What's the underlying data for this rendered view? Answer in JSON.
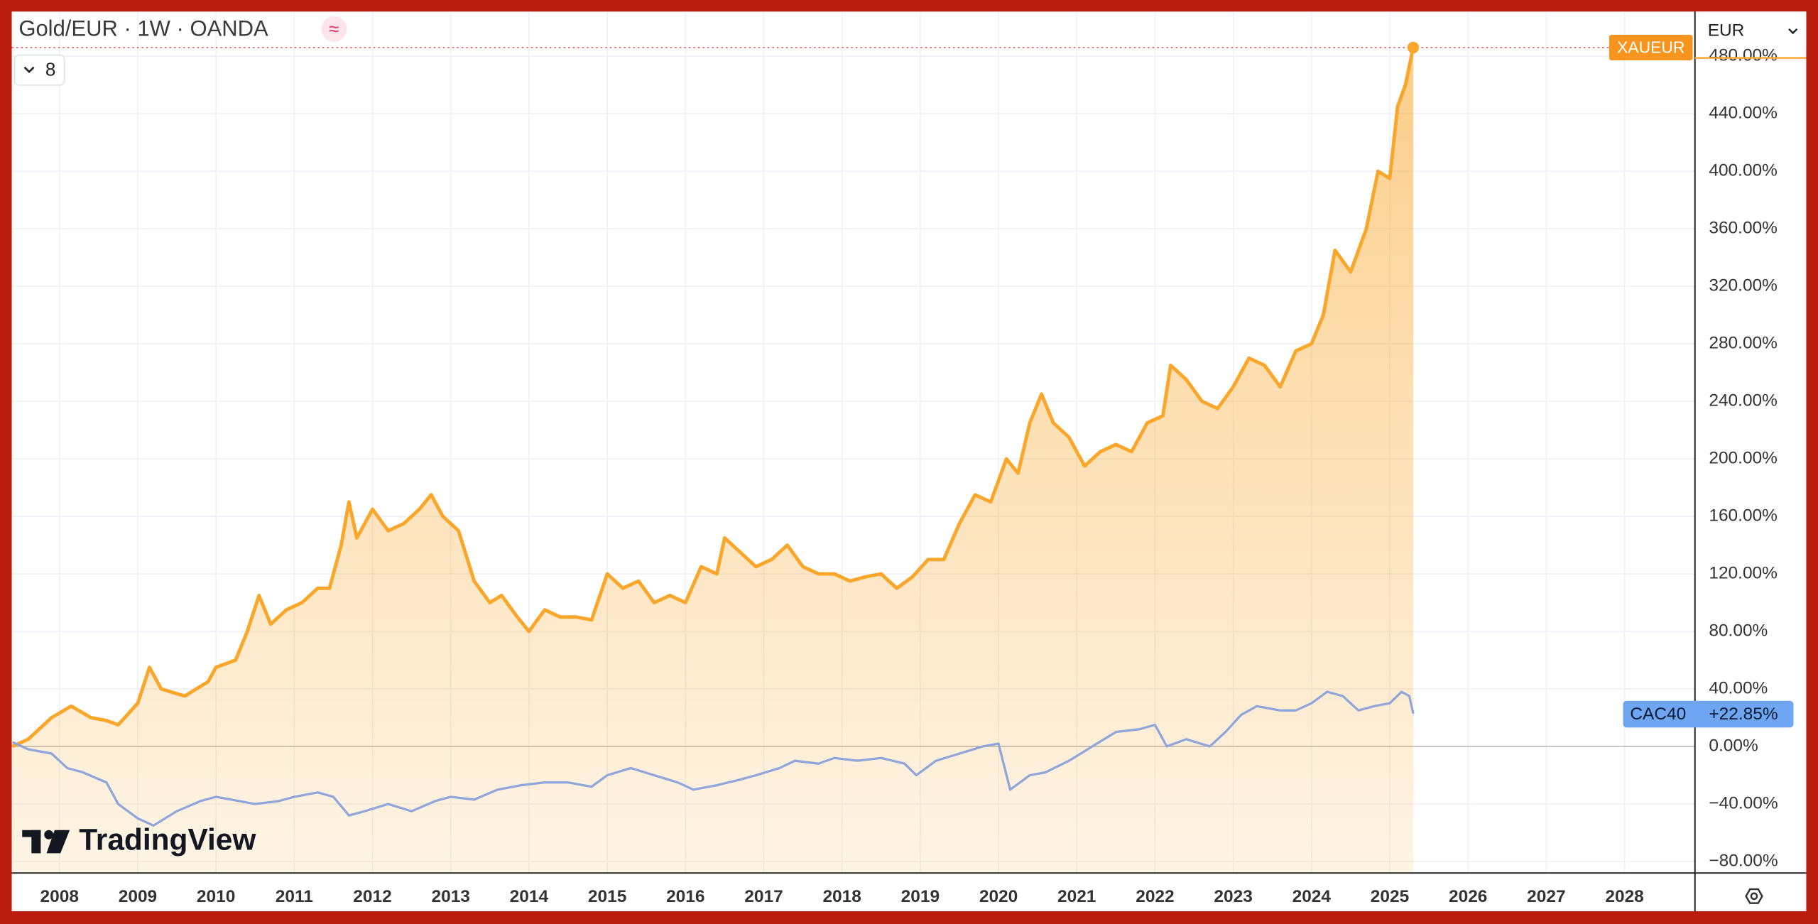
{
  "chart_data": {
    "type": "area-compare",
    "title": "Gold/EUR · 1W · OANDA",
    "indicator_count": "8",
    "currency": "EUR",
    "branding": "TradingView",
    "xlim": [
      2007.39,
      2028.9
    ],
    "xticks": [
      2008,
      2009,
      2010,
      2011,
      2012,
      2013,
      2014,
      2015,
      2016,
      2017,
      2018,
      2019,
      2020,
      2021,
      2022,
      2023,
      2024,
      2025,
      2026,
      2027,
      2028
    ],
    "ylim": [
      -88,
      511
    ],
    "yticks": [
      {
        "value": -80,
        "label": "−80.00%"
      },
      {
        "value": -40,
        "label": "−40.00%"
      },
      {
        "value": 0,
        "label": "0.00%"
      },
      {
        "value": 40,
        "label": "40.00%"
      },
      {
        "value": 80,
        "label": "80.00%"
      },
      {
        "value": 120,
        "label": "120.00%"
      },
      {
        "value": 160,
        "label": "160.00%"
      },
      {
        "value": 200,
        "label": "200.00%"
      },
      {
        "value": 240,
        "label": "240.00%"
      },
      {
        "value": 280,
        "label": "280.00%"
      },
      {
        "value": 320,
        "label": "320.00%"
      },
      {
        "value": 360,
        "label": "360.00%"
      },
      {
        "value": 400,
        "label": "400.00%"
      },
      {
        "value": 440,
        "label": "440.00%"
      },
      {
        "value": 480,
        "label": "480.00%"
      }
    ],
    "grid": true,
    "series": [
      {
        "name": "XAUEUR",
        "color": "#f9a62b",
        "fill": true,
        "x": [
          2007.4,
          2007.6,
          2007.9,
          2008.15,
          2008.4,
          2008.6,
          2008.75,
          2009.0,
          2009.15,
          2009.3,
          2009.6,
          2009.9,
          2010.0,
          2010.25,
          2010.4,
          2010.55,
          2010.7,
          2010.9,
          2011.1,
          2011.3,
          2011.45,
          2011.6,
          2011.7,
          2011.8,
          2012.0,
          2012.2,
          2012.4,
          2012.6,
          2012.75,
          2012.9,
          2013.1,
          2013.3,
          2013.5,
          2013.65,
          2013.85,
          2014.0,
          2014.2,
          2014.4,
          2014.6,
          2014.8,
          2015.0,
          2015.2,
          2015.4,
          2015.6,
          2015.8,
          2016.0,
          2016.2,
          2016.4,
          2016.5,
          2016.7,
          2016.9,
          2017.1,
          2017.3,
          2017.5,
          2017.7,
          2017.9,
          2018.1,
          2018.3,
          2018.5,
          2018.7,
          2018.9,
          2019.1,
          2019.3,
          2019.5,
          2019.7,
          2019.9,
          2020.1,
          2020.25,
          2020.4,
          2020.55,
          2020.7,
          2020.9,
          2021.1,
          2021.3,
          2021.5,
          2021.7,
          2021.9,
          2022.1,
          2022.2,
          2022.4,
          2022.6,
          2022.8,
          2023.0,
          2023.2,
          2023.4,
          2023.6,
          2023.8,
          2024.0,
          2024.15,
          2024.3,
          2024.5,
          2024.7,
          2024.85,
          2025.0,
          2025.1,
          2025.2,
          2025.3
        ],
        "values": [
          0,
          5,
          20,
          28,
          20,
          18,
          15,
          30,
          55,
          40,
          35,
          45,
          55,
          60,
          80,
          105,
          85,
          95,
          100,
          110,
          110,
          140,
          170,
          145,
          165,
          150,
          155,
          165,
          175,
          160,
          150,
          115,
          100,
          105,
          90,
          80,
          95,
          90,
          90,
          88,
          120,
          110,
          115,
          100,
          105,
          100,
          125,
          120,
          145,
          135,
          125,
          130,
          140,
          125,
          120,
          120,
          115,
          118,
          120,
          110,
          118,
          130,
          130,
          155,
          175,
          170,
          200,
          190,
          225,
          245,
          225,
          215,
          195,
          205,
          210,
          205,
          225,
          230,
          265,
          255,
          240,
          235,
          250,
          270,
          265,
          250,
          275,
          280,
          300,
          345,
          330,
          360,
          400,
          395,
          445,
          460,
          486
        ]
      },
      {
        "name": "CAC40",
        "color": "#8ea6da",
        "fill": false,
        "last_value_label": "+22.85%",
        "label_color": "#6ea6f2",
        "x": [
          2007.4,
          2007.6,
          2007.9,
          2008.1,
          2008.3,
          2008.6,
          2008.75,
          2009.0,
          2009.2,
          2009.5,
          2009.8,
          2010.0,
          2010.3,
          2010.5,
          2010.8,
          2011.0,
          2011.3,
          2011.5,
          2011.7,
          2011.9,
          2012.2,
          2012.5,
          2012.8,
          2013.0,
          2013.3,
          2013.6,
          2013.9,
          2014.2,
          2014.5,
          2014.8,
          2015.0,
          2015.3,
          2015.6,
          2015.9,
          2016.1,
          2016.4,
          2016.7,
          2016.9,
          2017.2,
          2017.4,
          2017.7,
          2017.9,
          2018.2,
          2018.5,
          2018.8,
          2018.95,
          2019.2,
          2019.5,
          2019.8,
          2020.0,
          2020.15,
          2020.4,
          2020.6,
          2020.9,
          2021.2,
          2021.5,
          2021.8,
          2022.0,
          2022.15,
          2022.4,
          2022.7,
          2022.9,
          2023.1,
          2023.3,
          2023.6,
          2023.8,
          2024.0,
          2024.2,
          2024.4,
          2024.6,
          2024.8,
          2025.0,
          2025.15,
          2025.25,
          2025.3
        ],
        "values": [
          3,
          -2,
          -5,
          -15,
          -18,
          -25,
          -40,
          -50,
          -55,
          -45,
          -38,
          -35,
          -38,
          -40,
          -38,
          -35,
          -32,
          -35,
          -48,
          -45,
          -40,
          -45,
          -38,
          -35,
          -37,
          -30,
          -27,
          -25,
          -25,
          -28,
          -20,
          -15,
          -20,
          -25,
          -30,
          -27,
          -23,
          -20,
          -15,
          -10,
          -12,
          -8,
          -10,
          -8,
          -12,
          -20,
          -10,
          -5,
          0,
          2,
          -30,
          -20,
          -18,
          -10,
          0,
          10,
          12,
          15,
          0,
          5,
          0,
          10,
          22,
          28,
          25,
          25,
          30,
          38,
          35,
          25,
          28,
          30,
          38,
          35,
          22.85
        ]
      }
    ]
  }
}
